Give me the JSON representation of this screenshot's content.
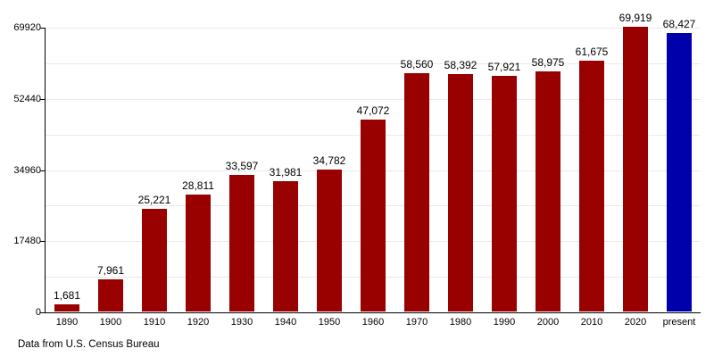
{
  "caption": "Data from U.S. Census Bureau",
  "colors": {
    "bar": "#990000",
    "highlight_bar": "#0000AA",
    "grid": "#e9e9e9",
    "axis": "#000000",
    "background": "#ffffff",
    "text": "#000000"
  },
  "chart_data": {
    "type": "bar",
    "categories": [
      "1890",
      "1900",
      "1910",
      "1920",
      "1930",
      "1940",
      "1950",
      "1960",
      "1970",
      "1980",
      "1990",
      "2000",
      "2010",
      "2020",
      "present"
    ],
    "values": [
      1681,
      7961,
      25221,
      28811,
      33597,
      31981,
      34782,
      47072,
      58560,
      58392,
      57921,
      58975,
      61675,
      69919,
      68427
    ],
    "value_labels": [
      "1,681",
      "7,961",
      "25,221",
      "28,811",
      "33,597",
      "31,981",
      "34,782",
      "47,072",
      "58,560",
      "58,392",
      "57,921",
      "58,975",
      "61,675",
      "69,919",
      "68,427"
    ],
    "highlight_category": "present",
    "title": "",
    "xlabel": "",
    "ylabel": "",
    "ylim": [
      0,
      69920
    ],
    "yticks": [
      0,
      17480,
      34960,
      52440,
      69920
    ],
    "ytick_labels": [
      "0",
      "17480",
      "34960",
      "52440",
      "69920"
    ],
    "minor_grid_step": 8740,
    "grid": true,
    "legend": "none"
  }
}
